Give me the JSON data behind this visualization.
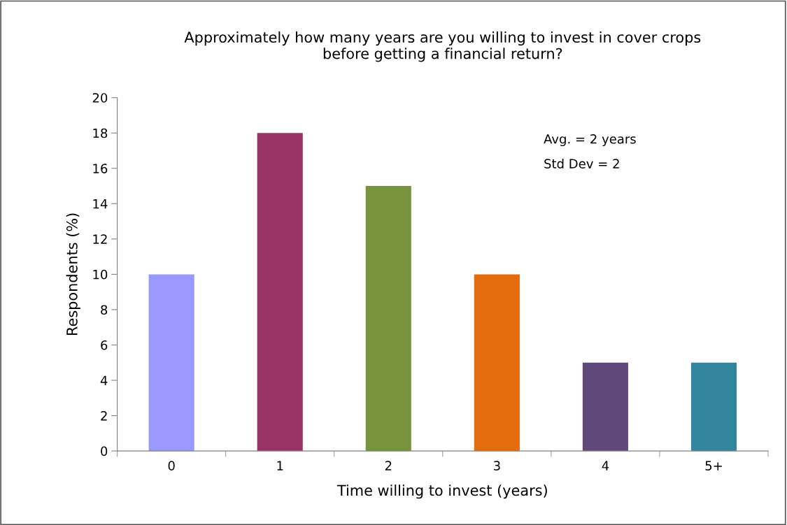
{
  "chart_data": {
    "type": "bar",
    "title": "Approximately how many years are you willing to invest in cover crops\nbefore getting a financial return?",
    "xlabel": "Time willing to invest (years)",
    "ylabel": "Respondents (%)",
    "categories": [
      "0",
      "1",
      "2",
      "3",
      "4",
      "5+"
    ],
    "values": [
      10,
      18,
      15,
      10,
      5,
      5
    ],
    "colors": [
      "#9999ff",
      "#993366",
      "#77933c",
      "#e46c0a",
      "#604a7b",
      "#31859c"
    ],
    "ylim": [
      0,
      20
    ],
    "yticks": [
      0,
      2,
      4,
      6,
      8,
      10,
      12,
      14,
      16,
      18,
      20
    ],
    "grid": false,
    "annotations": [
      "Avg. = 2 years",
      "Std Dev = 2"
    ]
  }
}
